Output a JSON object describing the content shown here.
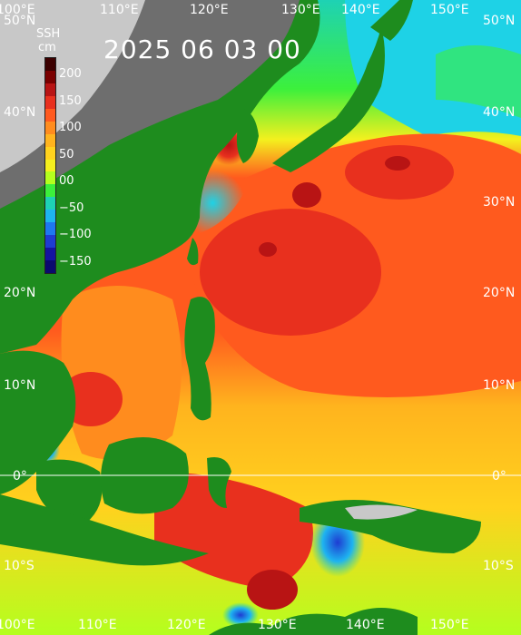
{
  "title": "2025 06 03 00",
  "colorbar": {
    "title": "SSH",
    "unit": "cm",
    "ticks": [
      "200",
      "150",
      "100",
      "50",
      "00",
      "−50",
      "−100",
      "−150"
    ],
    "colors": [
      "#3b0000",
      "#7a0000",
      "#b81414",
      "#e8301e",
      "#ff5a1e",
      "#ff8c1e",
      "#ffb41e",
      "#ffd21e",
      "#f4f01e",
      "#b4ff1e",
      "#3cf03c",
      "#1ed2b4",
      "#1eb4f0",
      "#1e78f0",
      "#1e3cd2",
      "#1414a0",
      "#0a0a6e"
    ]
  },
  "longitude_labels": [
    "100°E",
    "110°E",
    "120°E",
    "130°E",
    "140°E",
    "150°E"
  ],
  "latitude_labels": [
    "50°N",
    "40°N",
    "30°N",
    "20°N",
    "10°N",
    "0°",
    "10°S"
  ],
  "palette": {
    "ocean_high": "#e8401e",
    "ocean_mid": "#ff8c1e",
    "ocean_low": "#ffb41e",
    "shelf": "#1ed2e6",
    "land_lowland": "#1e8c1e",
    "land_highland": "#6e6e6e",
    "land_mountain": "#c8c8c8"
  }
}
